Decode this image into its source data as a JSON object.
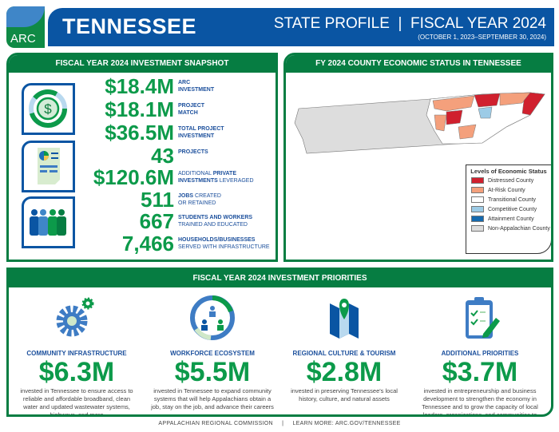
{
  "header": {
    "logo": "ARC",
    "state": "TENNESSEE",
    "profile": "STATE PROFILE  |  FISCAL YEAR 2024",
    "dates": "(OCTOBER 1, 2023–SEPTEMBER 30, 2024)"
  },
  "snapshot": {
    "title": "FISCAL YEAR 2024 INVESTMENT SNAPSHOT",
    "rows": [
      {
        "value": "$18.4M",
        "pre": "",
        "bold": "ARC",
        "post": "",
        "line2bold": "INVESTMENT",
        "line2": ""
      },
      {
        "value": "$18.1M",
        "pre": "",
        "bold": "PROJECT",
        "post": "",
        "line2bold": "MATCH",
        "line2": ""
      },
      {
        "value": "$36.5M",
        "pre": "",
        "bold": "TOTAL PROJECT",
        "post": "",
        "line2bold": "INVESTMENT",
        "line2": ""
      },
      {
        "value": "43",
        "pre": "",
        "bold": "PROJECTS",
        "post": "",
        "line2bold": "",
        "line2": ""
      },
      {
        "value": "$120.6M",
        "pre": "ADDITIONAL ",
        "bold": "PRIVATE",
        "post": "",
        "line2bold": "INVESTMENTS",
        "line2": " LEVERAGED"
      },
      {
        "value": "511",
        "pre": "",
        "bold": "JOBS",
        "post": " CREATED",
        "line2bold": "",
        "line2": "OR RETAINED"
      },
      {
        "value": "667",
        "pre": "",
        "bold": "STUDENTS AND WORKERS",
        "post": "",
        "line2bold": "",
        "line2": "TRAINED AND EDUCATED"
      },
      {
        "value": "7,466",
        "pre": "",
        "bold": "HOUSEHOLDS/BUSINESSES",
        "post": "",
        "line2bold": "",
        "line2": "SERVED WITH INFRASTRUCTURE"
      }
    ]
  },
  "map": {
    "title": "FY 2024 COUNTY ECONOMIC STATUS IN TENNESSEE",
    "legend_title": "Levels of Economic Status",
    "legend": [
      {
        "label": "Distressed County",
        "color": "#d0202e"
      },
      {
        "label": "At-Risk County",
        "color": "#f4a07c"
      },
      {
        "label": "Transitional County",
        "color": "#ffffff"
      },
      {
        "label": "Competitive County",
        "color": "#9ccbe6"
      },
      {
        "label": "Attainment County",
        "color": "#1469ae"
      },
      {
        "label": "Non-Appalachian County",
        "color": "#dddddd"
      }
    ]
  },
  "priorities": {
    "title": "FISCAL YEAR 2024 INVESTMENT PRIORITIES",
    "items": [
      {
        "heading": "COMMUNITY INFRASTRUCTURE",
        "value": "$6.3M",
        "desc": "invested in Tennessee to ensure access to reliable and affordable broadband, clean water and updated wastewater systems, highways, and more",
        "icon": "gears-icon"
      },
      {
        "heading": "WORKFORCE ECOSYSTEM",
        "value": "$5.5M",
        "desc": "invested in Tennessee to expand community systems that will help Appalachians obtain a job, stay on the job, and advance their careers",
        "icon": "people-network-icon"
      },
      {
        "heading": "REGIONAL CULTURE & TOURISM",
        "value": "$2.8M",
        "desc": "invested in preserving Tennessee's local history, culture, and natural assets",
        "icon": "map-pin-icon"
      },
      {
        "heading": "ADDITIONAL PRIORITIES",
        "value": "$3.7M",
        "desc": "invested in entrepreneurship and business development to strengthen the economy in Tennessee and to grow the capacity of local leaders, organizations, and communities to address challenges and create opportunities",
        "icon": "clipboard-icon"
      }
    ]
  },
  "footer": {
    "org": "APPALACHIAN REGIONAL COMMISSION",
    "sep": "|",
    "learn": "LEARN MORE: ARC.GOV/TENNESSEE"
  }
}
